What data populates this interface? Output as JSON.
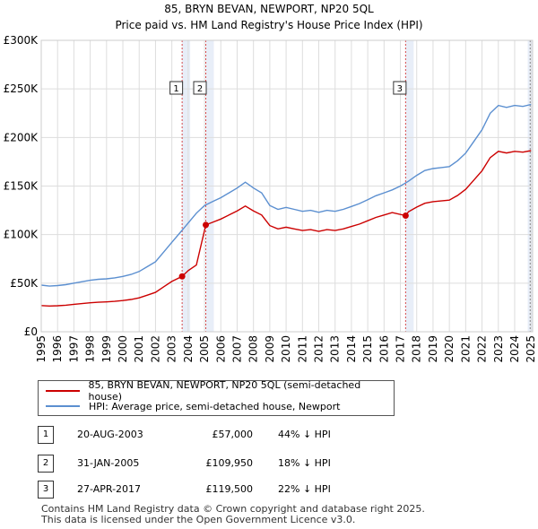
{
  "title_line1": "85, BRYN BEVAN, NEWPORT, NP20 5QL",
  "title_line2": "Price paid vs. HM Land Registry's House Price Index (HPI)",
  "legend": {
    "red_label": "85, BRYN BEVAN, NEWPORT, NP20 5QL (semi-detached house)",
    "blue_label": "HPI: Average price, semi-detached house, Newport"
  },
  "sales": [
    {
      "num": "1",
      "date": "20-AUG-2003",
      "price": "£57,000",
      "hpi": "44% ↓ HPI"
    },
    {
      "num": "2",
      "date": "31-JAN-2005",
      "price": "£109,950",
      "hpi": "18% ↓ HPI"
    },
    {
      "num": "3",
      "date": "27-APR-2017",
      "price": "£119,500",
      "hpi": "22% ↓ HPI"
    }
  ],
  "footer_line1": "Contains HM Land Registry data © Crown copyright and database right 2025.",
  "footer_line2": "This data is licensed under the Open Government Licence v3.0.",
  "colors": {
    "red": "#cc0000",
    "blue": "#5b8fd0",
    "grid": "#dddddd",
    "shade": "#e8eef8",
    "marker": "#cc0000"
  },
  "chart_data": {
    "type": "line",
    "title": "85, BRYN BEVAN, NEWPORT, NP20 5QL",
    "xlabel": "",
    "ylabel": "",
    "xlim": [
      1995,
      2025.1
    ],
    "ylim": [
      0,
      300000
    ],
    "ytick_values": [
      0,
      50000,
      100000,
      150000,
      200000,
      250000,
      300000
    ],
    "ytick_labels": [
      "£0",
      "£50K",
      "£100K",
      "£150K",
      "£200K",
      "£250K",
      "£300K"
    ],
    "xtick_values": [
      1995,
      1996,
      1997,
      1998,
      1999,
      2000,
      2001,
      2002,
      2003,
      2004,
      2005,
      2006,
      2007,
      2008,
      2009,
      2010,
      2011,
      2012,
      2013,
      2014,
      2015,
      2016,
      2017,
      2018,
      2019,
      2020,
      2021,
      2022,
      2023,
      2024,
      2025
    ],
    "xtick_labels": [
      "1995",
      "1996",
      "1997",
      "1998",
      "1999",
      "2000",
      "2001",
      "2002",
      "2003",
      "2004",
      "2005",
      "2006",
      "2007",
      "2008",
      "2009",
      "2010",
      "2011",
      "2012",
      "2013",
      "2014",
      "2015",
      "2016",
      "2017",
      "2018",
      "2019",
      "2020",
      "2021",
      "2022",
      "2023",
      "2024",
      "2025"
    ],
    "series": [
      {
        "name": "HPI: Average price, semi-detached house, Newport",
        "x": [
          1995,
          1995.5,
          1996,
          1996.5,
          1997,
          1997.5,
          1998,
          1998.5,
          1999,
          1999.5,
          2000,
          2000.5,
          2001,
          2001.5,
          2002,
          2002.5,
          2003,
          2003.5,
          2004,
          2004.5,
          2005,
          2005.5,
          2006,
          2006.5,
          2007,
          2007.5,
          2008,
          2008.5,
          2009,
          2009.5,
          2010,
          2010.5,
          2011,
          2011.5,
          2012,
          2012.5,
          2013,
          2013.5,
          2014,
          2014.5,
          2015,
          2015.5,
          2016,
          2016.5,
          2017,
          2017.5,
          2018,
          2018.5,
          2019,
          2019.5,
          2020,
          2020.5,
          2021,
          2021.5,
          2022,
          2022.5,
          2023,
          2023.5,
          2024,
          2024.5,
          2025
        ],
        "values": [
          48000,
          47000,
          47500,
          48500,
          50000,
          51500,
          53000,
          54000,
          54500,
          55500,
          57000,
          59000,
          62000,
          67000,
          72000,
          82000,
          92000,
          102000,
          112000,
          122000,
          130000,
          134000,
          138000,
          143000,
          148000,
          154000,
          148000,
          143000,
          130000,
          126000,
          128000,
          126000,
          124000,
          125000,
          123000,
          125000,
          124000,
          126000,
          129000,
          132000,
          136000,
          140000,
          143000,
          146000,
          150000,
          155000,
          161000,
          166000,
          168000,
          169000,
          170000,
          176000,
          184000,
          196000,
          208000,
          225000,
          233000,
          231000,
          233000,
          232000,
          234000
        ]
      },
      {
        "name": "85, BRYN BEVAN, NEWPORT, NP20 5QL (semi-detached house)",
        "x": [
          1995,
          1995.5,
          1996,
          1996.5,
          1997,
          1997.5,
          1998,
          1998.5,
          1999,
          1999.5,
          2000,
          2000.5,
          2001,
          2001.5,
          2002,
          2002.5,
          2003,
          2003.63,
          2004,
          2004.5,
          2005.08,
          2005.5,
          2006,
          2006.5,
          2007,
          2007.5,
          2008,
          2008.5,
          2009,
          2009.5,
          2010,
          2010.5,
          2011,
          2011.5,
          2012,
          2012.5,
          2013,
          2013.5,
          2014,
          2014.5,
          2015,
          2015.5,
          2016,
          2016.5,
          2017.32,
          2017.5,
          2018,
          2018.5,
          2019,
          2019.5,
          2020,
          2020.5,
          2021,
          2021.5,
          2022,
          2022.5,
          2023,
          2023.5,
          2024,
          2024.5,
          2025
        ],
        "values": [
          27000,
          26500,
          26800,
          27300,
          28200,
          29000,
          29800,
          30400,
          30700,
          31300,
          32100,
          33200,
          34900,
          37700,
          40500,
          46200,
          51800,
          57000,
          63000,
          68700,
          109950,
          112700,
          116000,
          120200,
          124400,
          129400,
          124400,
          120200,
          109300,
          105900,
          107600,
          105900,
          104200,
          105100,
          103400,
          105100,
          104200,
          105900,
          108400,
          110900,
          114300,
          117700,
          120200,
          122700,
          119500,
          123600,
          128300,
          132300,
          133900,
          134700,
          135500,
          140300,
          146700,
          156200,
          165800,
          179300,
          185700,
          184100,
          185700,
          184900,
          186500
        ]
      }
    ],
    "annotations": [
      {
        "label": "1",
        "x": 2003.63,
        "y": 57000
      },
      {
        "label": "2",
        "x": 2005.08,
        "y": 109950
      },
      {
        "label": "3",
        "x": 2017.32,
        "y": 119500
      }
    ]
  }
}
